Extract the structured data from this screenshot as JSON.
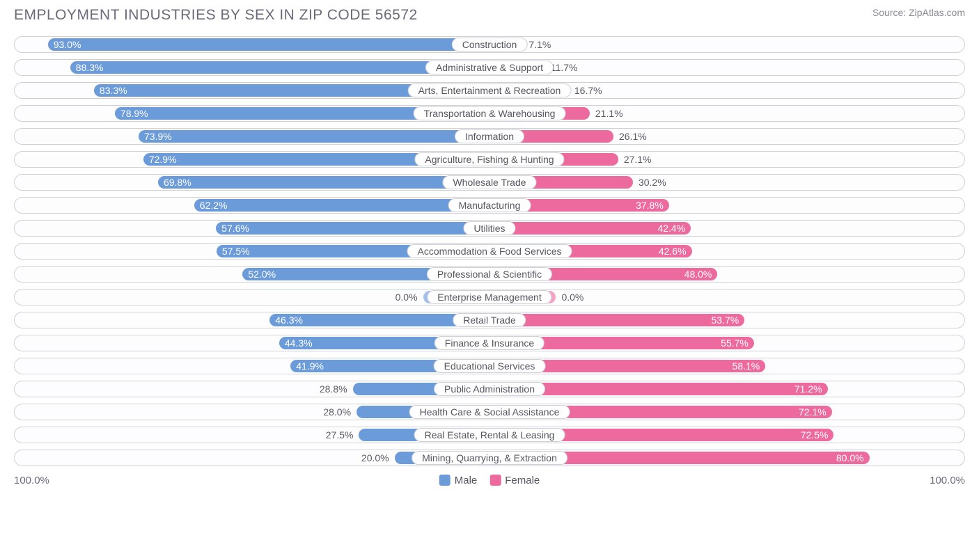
{
  "title": "EMPLOYMENT INDUSTRIES BY SEX IN ZIP CODE 56572",
  "source": "Source: ZipAtlas.com",
  "colors": {
    "male": "#6c9bd9",
    "male_faded": "#a3c0e8",
    "female": "#ec6a9e",
    "female_faded": "#f4a3c3",
    "track_border": "#d0d0d8",
    "text": "#5a5a68"
  },
  "axis": {
    "left": "100.0%",
    "right": "100.0%"
  },
  "legend": {
    "male": "Male",
    "female": "Female"
  },
  "chart": {
    "type": "diverging-bar",
    "half_width_pct": 50,
    "rows": [
      {
        "category": "Construction",
        "male": 93.0,
        "female": 7.1,
        "faded": false
      },
      {
        "category": "Administrative & Support",
        "male": 88.3,
        "female": 11.7,
        "faded": false
      },
      {
        "category": "Arts, Entertainment & Recreation",
        "male": 83.3,
        "female": 16.7,
        "faded": false
      },
      {
        "category": "Transportation & Warehousing",
        "male": 78.9,
        "female": 21.1,
        "faded": false
      },
      {
        "category": "Information",
        "male": 73.9,
        "female": 26.1,
        "faded": false
      },
      {
        "category": "Agriculture, Fishing & Hunting",
        "male": 72.9,
        "female": 27.1,
        "faded": false
      },
      {
        "category": "Wholesale Trade",
        "male": 69.8,
        "female": 30.2,
        "faded": false
      },
      {
        "category": "Manufacturing",
        "male": 62.2,
        "female": 37.8,
        "faded": false
      },
      {
        "category": "Utilities",
        "male": 57.6,
        "female": 42.4,
        "faded": false
      },
      {
        "category": "Accommodation & Food Services",
        "male": 57.5,
        "female": 42.6,
        "faded": false
      },
      {
        "category": "Professional & Scientific",
        "male": 52.0,
        "female": 48.0,
        "faded": false
      },
      {
        "category": "Enterprise Management",
        "male": 0.0,
        "female": 0.0,
        "faded": true,
        "stub_male": 14,
        "stub_female": 14
      },
      {
        "category": "Retail Trade",
        "male": 46.3,
        "female": 53.7,
        "faded": false
      },
      {
        "category": "Finance & Insurance",
        "male": 44.3,
        "female": 55.7,
        "faded": false
      },
      {
        "category": "Educational Services",
        "male": 41.9,
        "female": 58.1,
        "faded": false
      },
      {
        "category": "Public Administration",
        "male": 28.8,
        "female": 71.2,
        "faded": false
      },
      {
        "category": "Health Care & Social Assistance",
        "male": 28.0,
        "female": 72.1,
        "faded": false
      },
      {
        "category": "Real Estate, Rental & Leasing",
        "male": 27.5,
        "female": 72.5,
        "faded": false
      },
      {
        "category": "Mining, Quarrying, & Extraction",
        "male": 20.0,
        "female": 80.0,
        "faded": false
      }
    ]
  }
}
